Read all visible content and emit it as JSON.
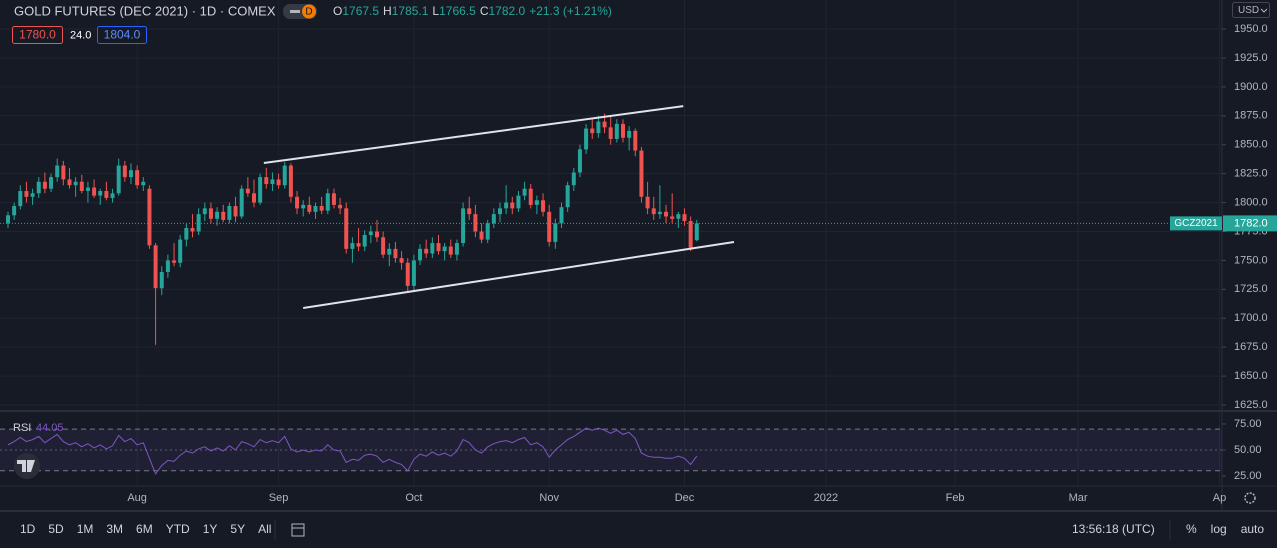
{
  "header": {
    "symbol": "GOLD FUTURES (DEC 2021) · 1D · COMEX",
    "badge": "D",
    "ohlc_labels": [
      "O",
      "H",
      "L",
      "C"
    ],
    "ohlc_values": [
      "1767.5",
      "1785.1",
      "1766.5",
      "1782.0"
    ],
    "change": "+21.3 (+1.21%)",
    "sell": "1780.0",
    "spread": "24.0",
    "buy": "1804.0",
    "currency": "USD"
  },
  "toolbar": {
    "ranges": [
      "1D",
      "5D",
      "1M",
      "3M",
      "6M",
      "YTD",
      "1Y",
      "5Y",
      "All"
    ],
    "clock": "13:56:18 (UTC)",
    "options": [
      "%",
      "log",
      "auto"
    ]
  },
  "chart_data": {
    "type": "candlestick",
    "up_color": "#26a69a",
    "down_color": "#ef5350",
    "grid": true,
    "xlim": [
      -1.3,
      197.4
    ],
    "xticks": [
      {
        "value": 21,
        "label": "Aug"
      },
      {
        "value": 44,
        "label": "Sep"
      },
      {
        "value": 66,
        "label": "Oct"
      },
      {
        "value": 88,
        "label": "Nov"
      },
      {
        "value": 110,
        "label": "Dec"
      },
      {
        "value": 133,
        "label": "2022"
      },
      {
        "value": 154,
        "label": "Feb"
      },
      {
        "value": 174,
        "label": "Mar"
      },
      {
        "value": 197,
        "label": "Ap"
      }
    ],
    "ylim": [
      1620.7,
      1975.1
    ],
    "yticks": [
      {
        "value": 1625,
        "label": "1625.0"
      },
      {
        "value": 1650,
        "label": "1650.0"
      },
      {
        "value": 1675,
        "label": "1675.0"
      },
      {
        "value": 1700,
        "label": "1700.0"
      },
      {
        "value": 1725,
        "label": "1725.0"
      },
      {
        "value": 1750,
        "label": "1750.0"
      },
      {
        "value": 1775,
        "label": "1775.0"
      },
      {
        "value": 1800,
        "label": "1800.0"
      },
      {
        "value": 1825,
        "label": "1825.0"
      },
      {
        "value": 1850,
        "label": "1850.0"
      },
      {
        "value": 1875,
        "label": "1875.0"
      },
      {
        "value": 1900,
        "label": "1900.0"
      },
      {
        "value": 1925,
        "label": "1925.0"
      },
      {
        "value": 1950,
        "label": "1950.0"
      }
    ],
    "ohlc": [
      [
        1782,
        1792,
        1778,
        1789
      ],
      [
        1789,
        1800,
        1785,
        1797
      ],
      [
        1797,
        1815,
        1794,
        1810
      ],
      [
        1810,
        1818,
        1800,
        1805
      ],
      [
        1805,
        1812,
        1798,
        1808
      ],
      [
        1808,
        1822,
        1804,
        1818
      ],
      [
        1818,
        1826,
        1808,
        1812
      ],
      [
        1812,
        1825,
        1809,
        1822
      ],
      [
        1822,
        1838,
        1818,
        1832
      ],
      [
        1832,
        1836,
        1815,
        1820
      ],
      [
        1820,
        1830,
        1812,
        1815
      ],
      [
        1815,
        1822,
        1805,
        1818
      ],
      [
        1818,
        1824,
        1808,
        1810
      ],
      [
        1810,
        1818,
        1800,
        1813
      ],
      [
        1813,
        1820,
        1804,
        1806
      ],
      [
        1806,
        1812,
        1798,
        1810
      ],
      [
        1810,
        1818,
        1802,
        1804
      ],
      [
        1804,
        1812,
        1800,
        1808
      ],
      [
        1808,
        1838,
        1806,
        1832
      ],
      [
        1832,
        1836,
        1818,
        1822
      ],
      [
        1822,
        1834,
        1816,
        1828
      ],
      [
        1828,
        1832,
        1812,
        1815
      ],
      [
        1815,
        1822,
        1810,
        1818
      ],
      [
        1812,
        1815,
        1760,
        1763
      ],
      [
        1763,
        1765,
        1677,
        1726
      ],
      [
        1726,
        1745,
        1720,
        1740
      ],
      [
        1740,
        1755,
        1735,
        1750
      ],
      [
        1750,
        1765,
        1745,
        1748
      ],
      [
        1748,
        1772,
        1744,
        1768
      ],
      [
        1768,
        1782,
        1762,
        1778
      ],
      [
        1778,
        1790,
        1770,
        1775
      ],
      [
        1775,
        1795,
        1772,
        1790
      ],
      [
        1790,
        1800,
        1784,
        1795
      ],
      [
        1795,
        1800,
        1782,
        1786
      ],
      [
        1786,
        1796,
        1780,
        1792
      ],
      [
        1792,
        1798,
        1783,
        1785
      ],
      [
        1785,
        1800,
        1782,
        1797
      ],
      [
        1797,
        1805,
        1783,
        1788
      ],
      [
        1788,
        1815,
        1786,
        1812
      ],
      [
        1812,
        1822,
        1805,
        1808
      ],
      [
        1808,
        1820,
        1796,
        1800
      ],
      [
        1800,
        1825,
        1798,
        1822
      ],
      [
        1822,
        1830,
        1812,
        1816
      ],
      [
        1816,
        1826,
        1810,
        1820
      ],
      [
        1820,
        1825,
        1812,
        1815
      ],
      [
        1815,
        1835,
        1812,
        1832
      ],
      [
        1832,
        1834,
        1800,
        1805
      ],
      [
        1805,
        1810,
        1790,
        1795
      ],
      [
        1795,
        1802,
        1788,
        1798
      ],
      [
        1798,
        1805,
        1790,
        1792
      ],
      [
        1792,
        1800,
        1786,
        1797
      ],
      [
        1797,
        1805,
        1790,
        1793
      ],
      [
        1793,
        1812,
        1790,
        1808
      ],
      [
        1808,
        1812,
        1795,
        1798
      ],
      [
        1798,
        1804,
        1790,
        1795
      ],
      [
        1795,
        1800,
        1756,
        1760
      ],
      [
        1760,
        1770,
        1748,
        1765
      ],
      [
        1765,
        1778,
        1758,
        1762
      ],
      [
        1762,
        1776,
        1758,
        1772
      ],
      [
        1772,
        1780,
        1765,
        1775
      ],
      [
        1775,
        1785,
        1766,
        1770
      ],
      [
        1770,
        1775,
        1752,
        1755
      ],
      [
        1755,
        1765,
        1745,
        1760
      ],
      [
        1760,
        1766,
        1748,
        1752
      ],
      [
        1752,
        1758,
        1742,
        1748
      ],
      [
        1748,
        1752,
        1722,
        1728
      ],
      [
        1728,
        1755,
        1724,
        1750
      ],
      [
        1750,
        1764,
        1746,
        1760
      ],
      [
        1760,
        1768,
        1752,
        1756
      ],
      [
        1756,
        1770,
        1752,
        1765
      ],
      [
        1765,
        1772,
        1755,
        1758
      ],
      [
        1758,
        1765,
        1750,
        1762
      ],
      [
        1762,
        1768,
        1752,
        1755
      ],
      [
        1755,
        1768,
        1750,
        1765
      ],
      [
        1765,
        1800,
        1762,
        1795
      ],
      [
        1795,
        1805,
        1785,
        1790
      ],
      [
        1790,
        1798,
        1770,
        1775
      ],
      [
        1775,
        1782,
        1765,
        1768
      ],
      [
        1768,
        1785,
        1765,
        1782
      ],
      [
        1782,
        1795,
        1778,
        1790
      ],
      [
        1790,
        1800,
        1783,
        1795
      ],
      [
        1795,
        1815,
        1790,
        1800
      ],
      [
        1800,
        1805,
        1790,
        1795
      ],
      [
        1795,
        1810,
        1792,
        1806
      ],
      [
        1806,
        1818,
        1802,
        1812
      ],
      [
        1812,
        1816,
        1795,
        1798
      ],
      [
        1798,
        1806,
        1790,
        1802
      ],
      [
        1802,
        1808,
        1788,
        1792
      ],
      [
        1792,
        1798,
        1762,
        1766
      ],
      [
        1766,
        1786,
        1760,
        1782
      ],
      [
        1782,
        1800,
        1778,
        1796
      ],
      [
        1796,
        1818,
        1792,
        1815
      ],
      [
        1815,
        1830,
        1810,
        1826
      ],
      [
        1826,
        1850,
        1822,
        1846
      ],
      [
        1846,
        1868,
        1842,
        1864
      ],
      [
        1864,
        1872,
        1855,
        1860
      ],
      [
        1860,
        1875,
        1856,
        1870
      ],
      [
        1870,
        1877,
        1860,
        1865
      ],
      [
        1865,
        1874,
        1850,
        1855
      ],
      [
        1855,
        1872,
        1852,
        1868
      ],
      [
        1868,
        1872,
        1852,
        1856
      ],
      [
        1856,
        1866,
        1845,
        1862
      ],
      [
        1862,
        1864,
        1840,
        1845
      ],
      [
        1845,
        1848,
        1800,
        1805
      ],
      [
        1805,
        1818,
        1790,
        1795
      ],
      [
        1795,
        1805,
        1785,
        1790
      ],
      [
        1790,
        1815,
        1786,
        1792
      ],
      [
        1792,
        1798,
        1782,
        1788
      ],
      [
        1788,
        1808,
        1782,
        1786
      ],
      [
        1786,
        1792,
        1778,
        1790
      ],
      [
        1790,
        1795,
        1780,
        1784
      ],
      [
        1784,
        1788,
        1758,
        1761
      ],
      [
        1767.5,
        1785.1,
        1766.5,
        1782.0
      ]
    ],
    "price_line": {
      "value": 1782.0,
      "label": "1782.0",
      "symbol": "GCZ2021"
    },
    "trendlines": [
      {
        "x": [
          41.6,
          109.8
        ],
        "y": [
          1834.2,
          1883.4
        ]
      },
      {
        "x": [
          48,
          118.05
        ],
        "y": [
          1708.9,
          1765.9
        ]
      }
    ],
    "rsi": {
      "name": "RSI",
      "value_label": "44.05",
      "color": "#7e57c2",
      "ylim": [
        16.3,
        86.5
      ],
      "yticks": [
        {
          "value": 25,
          "label": "25.00"
        },
        {
          "value": 50,
          "label": "50.00"
        },
        {
          "value": 75,
          "label": "75.00"
        }
      ],
      "bands": [
        30,
        70
      ],
      "midline": 50,
      "values": [
        55,
        58,
        62,
        58,
        60,
        63,
        57,
        61,
        65,
        58,
        55,
        57,
        53,
        56,
        52,
        55,
        51,
        54,
        64,
        58,
        61,
        55,
        57,
        42,
        27,
        35,
        40,
        39,
        45,
        49,
        47,
        51,
        53,
        49,
        52,
        49,
        54,
        50,
        58,
        56,
        53,
        60,
        57,
        59,
        57,
        63,
        51,
        48,
        50,
        48,
        50,
        49,
        55,
        50,
        49,
        38,
        41,
        40,
        45,
        46,
        44,
        38,
        41,
        38,
        36,
        30,
        41,
        46,
        44,
        48,
        45,
        47,
        44,
        49,
        60,
        57,
        50,
        47,
        53,
        56,
        58,
        59,
        57,
        60,
        62,
        55,
        57,
        53,
        43,
        50,
        55,
        60,
        63,
        67,
        71,
        69,
        71,
        69,
        66,
        69,
        65,
        67,
        61,
        47,
        44,
        43,
        43,
        42,
        42,
        44,
        42,
        36,
        44.05
      ]
    }
  }
}
